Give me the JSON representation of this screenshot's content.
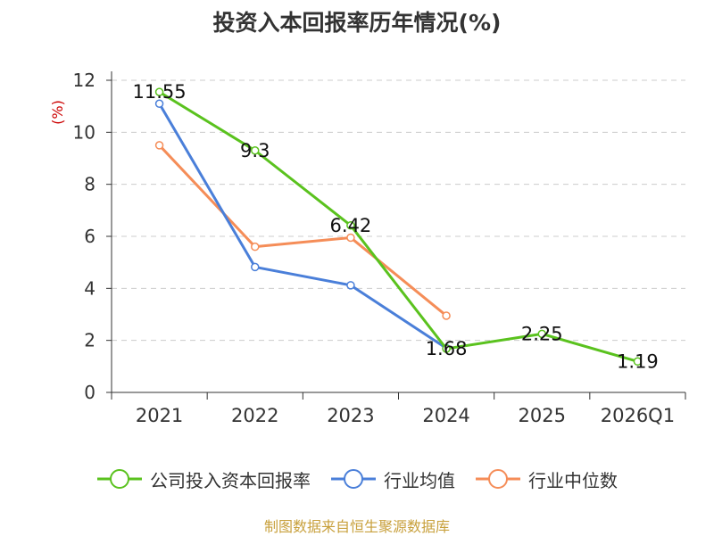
{
  "chart_data": {
    "type": "line",
    "title": "投资入本回报率历年情况(%)",
    "ylabel": "(%)",
    "xlabel": "",
    "categories": [
      "2021",
      "2022",
      "2023",
      "2024",
      "2025",
      "2026Q1"
    ],
    "ylim": [
      0,
      12
    ],
    "yticks": [
      0,
      2,
      4,
      6,
      8,
      10,
      12
    ],
    "grid": true,
    "legend_position": "bottom",
    "series": [
      {
        "name": "公司投入资本回报率",
        "color": "#5ac21e",
        "values": [
          11.55,
          9.3,
          6.42,
          1.68,
          2.25,
          1.19
        ],
        "labels": [
          "11.55",
          "9.3",
          "6.42",
          "1.68",
          "2.25",
          "1.19"
        ]
      },
      {
        "name": "行业均值",
        "color": "#4a7fd9",
        "values": [
          11.1,
          4.82,
          4.12,
          1.7,
          null,
          null
        ]
      },
      {
        "name": "行业中位数",
        "color": "#f58d58",
        "values": [
          9.5,
          5.6,
          5.95,
          2.95,
          null,
          null
        ]
      }
    ]
  },
  "source_note": "制图数据来自恒生聚源数据库"
}
